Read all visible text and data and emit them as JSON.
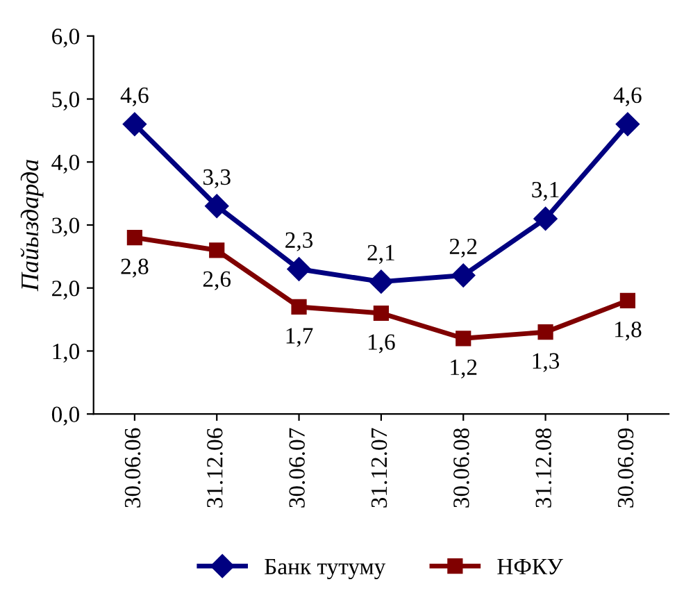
{
  "chart_data": {
    "type": "line",
    "ylabel": "Пайыздарда",
    "categories": [
      "30.06.06",
      "31.12.06",
      "30.06.07",
      "31.12.07",
      "30.06.08",
      "31.12.08",
      "30.06.09"
    ],
    "series": [
      {
        "name": "Банк тутуму",
        "color": "#000080",
        "marker": "diamond",
        "values": [
          4.6,
          3.3,
          2.3,
          2.1,
          2.2,
          3.1,
          4.6
        ],
        "value_labels": [
          "4,6",
          "3,3",
          "2,3",
          "2,1",
          "2,2",
          "3,1",
          "4,6"
        ]
      },
      {
        "name": "НФКУ",
        "color": "#800000",
        "marker": "square",
        "values": [
          2.8,
          2.6,
          1.7,
          1.6,
          1.2,
          1.3,
          1.8
        ],
        "value_labels": [
          "2,8",
          "2,6",
          "1,7",
          "1,6",
          "1,2",
          "1,3",
          "1,8"
        ]
      }
    ],
    "ylim": [
      0,
      6
    ],
    "yticks": [
      {
        "value": 0,
        "label": "0,0"
      },
      {
        "value": 1,
        "label": "1,0"
      },
      {
        "value": 2,
        "label": "2,0"
      },
      {
        "value": 3,
        "label": "3,0"
      },
      {
        "value": 4,
        "label": "4,0"
      },
      {
        "value": 5,
        "label": "5,0"
      },
      {
        "value": 6,
        "label": "6,0"
      }
    ],
    "grid": false,
    "legend": "bottom",
    "line_style": "solid"
  }
}
